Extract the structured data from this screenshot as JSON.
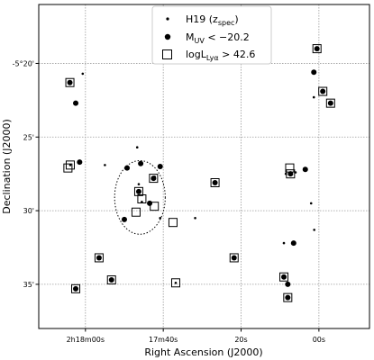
{
  "chart_data": {
    "type": "scatter",
    "xlabel": "Right Ascension (J2000)",
    "ylabel": "Declination (J2000)",
    "x_unit": "seconds offset within RA 2h17m (plotting coordinate)",
    "y_unit": "arcmin offset from Dec -5deg",
    "xlim": [
      72,
      -13
    ],
    "ylim": [
      -38,
      -16
    ],
    "grid": true,
    "legend_position": "top-center",
    "x_ticks": [
      {
        "value": 60,
        "label": "2h18m00s"
      },
      {
        "value": 40,
        "label": "17m40s"
      },
      {
        "value": 20,
        "label": "20s"
      },
      {
        "value": 0,
        "label": "00s"
      }
    ],
    "y_ticks": [
      {
        "value": -20,
        "label": "-5°20'"
      },
      {
        "value": -25,
        "label": "25'"
      },
      {
        "value": -30,
        "label": "30'"
      },
      {
        "value": -35,
        "label": "35'"
      }
    ],
    "legend": [
      {
        "key": "h19",
        "label": "H19 (z",
        "label_sub": "spec",
        "label_end": ")"
      },
      {
        "key": "muv",
        "label": "M",
        "label_sub": "UV",
        "label_end": " < −20.2"
      },
      {
        "key": "lya",
        "label": "logL",
        "label_sub": "Lyα",
        "label_end": " > 42.6"
      }
    ],
    "series": [
      {
        "key": "h19",
        "marker": "small-dot",
        "points": [
          [
            64,
            -21.3
          ],
          [
            55,
            -26.9
          ],
          [
            53.3,
            -34.7
          ],
          [
            62.5,
            -35.3
          ],
          [
            50,
            -30.6
          ],
          [
            46.7,
            -25.7
          ],
          [
            46.3,
            -28.2
          ],
          [
            45.5,
            -29.4
          ],
          [
            40.8,
            -30.5
          ],
          [
            31.8,
            -30.5
          ],
          [
            9,
            -32.2
          ],
          [
            1.2,
            -31.3
          ],
          [
            1.3,
            -22.3
          ],
          [
            2,
            -29.5
          ],
          [
            6,
            -27.4
          ],
          [
            8.5,
            -27.5
          ],
          [
            61.5,
            -26.7
          ],
          [
            63.9,
            -26.9
          ],
          [
            56.5,
            -33.2
          ],
          [
            60.7,
            -20.7
          ],
          [
            36.8,
            -34.9
          ],
          [
            45.8,
            -26.8
          ],
          [
            43.2,
            -29.5
          ],
          [
            42.2,
            -27.7
          ],
          [
            9,
            -34.5
          ],
          [
            42.5,
            -27.8
          ]
        ]
      },
      {
        "key": "muv",
        "marker": "large-dot",
        "points": [
          [
            64,
            -21.3
          ],
          [
            62.5,
            -22.7
          ],
          [
            61.5,
            -26.7
          ],
          [
            62.5,
            -35.3
          ],
          [
            56.5,
            -33.2
          ],
          [
            53.3,
            -34.7
          ],
          [
            50,
            -30.6
          ],
          [
            49.3,
            -27.1
          ],
          [
            43.5,
            -29.5
          ],
          [
            46.3,
            -28.7
          ],
          [
            45.8,
            -26.8
          ],
          [
            40.8,
            -27
          ],
          [
            42.5,
            -27.8
          ],
          [
            26.7,
            -28.1
          ],
          [
            21.8,
            -33.2
          ],
          [
            9,
            -34.5
          ],
          [
            6.5,
            -32.2
          ],
          [
            3.5,
            -27.2
          ],
          [
            7.3,
            -27.5
          ],
          [
            8,
            -35
          ],
          [
            8,
            -35.9
          ],
          [
            1.3,
            -20.6
          ],
          [
            -1,
            -21.9
          ],
          [
            -3,
            -22.7
          ],
          [
            0.5,
            -19
          ]
        ]
      },
      {
        "key": "lya",
        "marker": "open-square",
        "points": [
          [
            64,
            -21.3
          ],
          [
            64.5,
            -27.1
          ],
          [
            63.9,
            -26.9
          ],
          [
            62.5,
            -35.3
          ],
          [
            56.5,
            -33.2
          ],
          [
            53.3,
            -34.7
          ],
          [
            47,
            -30.1
          ],
          [
            45.5,
            -29.2
          ],
          [
            46.3,
            -28.7
          ],
          [
            42.5,
            -27.8
          ],
          [
            42.3,
            -29.7
          ],
          [
            37.5,
            -30.8
          ],
          [
            36.8,
            -34.9
          ],
          [
            26.7,
            -28.1
          ],
          [
            21.8,
            -33.2
          ],
          [
            9,
            -34.5
          ],
          [
            8,
            -35.9
          ],
          [
            7.5,
            -27.1
          ],
          [
            7.3,
            -27.5
          ],
          [
            0.5,
            -19
          ],
          [
            -1,
            -21.9
          ],
          [
            -3,
            -22.7
          ]
        ]
      }
    ],
    "annotations": [
      {
        "type": "dotted-circle",
        "center": [
          46,
          -29.1
        ],
        "radius_x": 6.5,
        "radius_y": 2.5
      }
    ]
  }
}
